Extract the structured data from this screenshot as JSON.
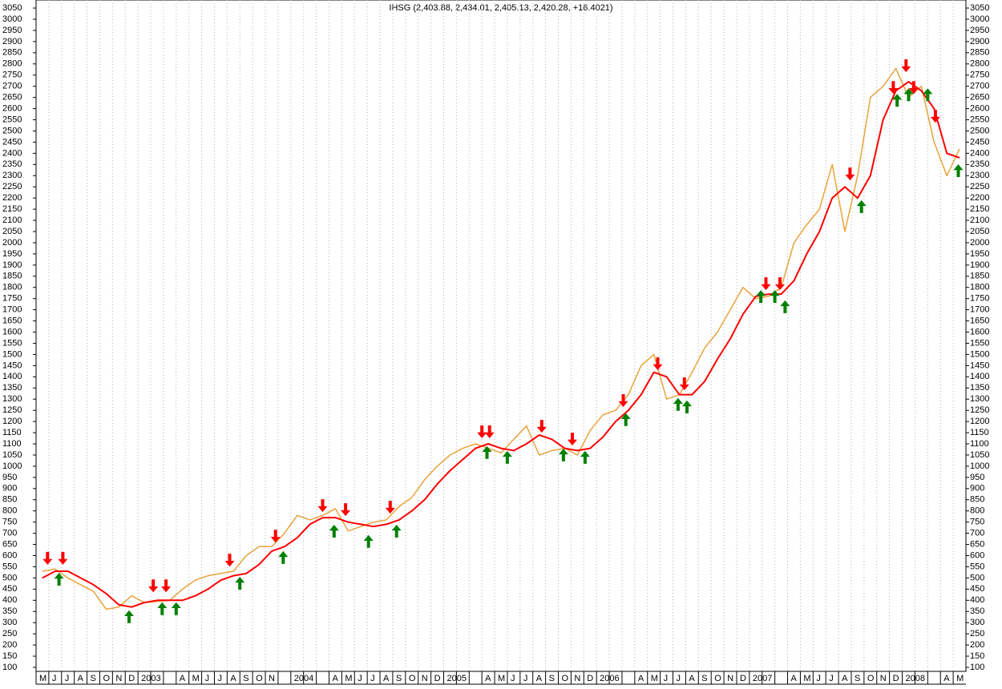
{
  "chart_data": {
    "type": "line",
    "title": "IHSG (2,403.88, 2,434.01, 2,405.13, 2,420.28, +16.4021)",
    "categories": [
      "M",
      "J",
      "J",
      "A",
      "S",
      "O",
      "N",
      "D",
      "2003",
      null,
      null,
      "A",
      "M",
      "J",
      "J",
      "A",
      "S",
      "O",
      "N",
      null,
      "2004",
      null,
      null,
      "A",
      "M",
      "J",
      "J",
      "A",
      "S",
      "O",
      "N",
      "D",
      "2005",
      null,
      null,
      "A",
      "M",
      "J",
      "J",
      "A",
      "S",
      "O",
      "N",
      "D",
      "2006",
      null,
      null,
      "A",
      "M",
      "J",
      "J",
      "A",
      "S",
      "O",
      "N",
      "D",
      "2007",
      null,
      null,
      "A",
      "M",
      "J",
      "J",
      "A",
      "S",
      "O",
      "N",
      "D",
      "2008",
      null,
      null,
      "A",
      "M"
    ],
    "price": {
      "color": "#e8a33c",
      "values": [
        530,
        540,
        500,
        470,
        440,
        360,
        370,
        420,
        390,
        395,
        400,
        450,
        490,
        510,
        520,
        530,
        600,
        640,
        640,
        700,
        780,
        760,
        780,
        810,
        710,
        730,
        750,
        760,
        820,
        860,
        940,
        1000,
        1050,
        1080,
        1100,
        1080,
        1060,
        1120,
        1180,
        1050,
        1070,
        1080,
        1050,
        1160,
        1230,
        1250,
        1320,
        1450,
        1500,
        1300,
        1320,
        1420,
        1530,
        1600,
        1700,
        1800,
        1750,
        1760,
        1800,
        2000,
        2080,
        2150,
        2350,
        2050,
        2300,
        2650,
        2700,
        2780,
        2650,
        2700,
        2450,
        2300,
        2420
      ]
    },
    "moving_average": {
      "color": "#ff0000",
      "values": [
        500,
        530,
        530,
        500,
        470,
        430,
        380,
        370,
        390,
        400,
        400,
        400,
        420,
        450,
        490,
        510,
        520,
        560,
        620,
        640,
        680,
        740,
        770,
        770,
        750,
        740,
        730,
        740,
        760,
        800,
        850,
        920,
        980,
        1030,
        1080,
        1100,
        1080,
        1070,
        1100,
        1140,
        1120,
        1080,
        1070,
        1080,
        1130,
        1200,
        1250,
        1320,
        1420,
        1400,
        1320,
        1320,
        1380,
        1480,
        1570,
        1680,
        1760,
        1770,
        1770,
        1830,
        1950,
        2050,
        2200,
        2250,
        2200,
        2300,
        2550,
        2680,
        2720,
        2680,
        2600,
        2400,
        2380
      ]
    },
    "signals": {
      "sell": {
        "color": "#ff0000",
        "x": [
          0.4,
          1.6,
          8.7,
          9.7,
          14.7,
          18.3,
          22,
          23.8,
          27.3,
          34.5,
          35.1,
          39.2,
          41.6,
          45.6,
          48.3,
          50.4,
          56.8,
          57.9,
          63.4,
          66.8,
          67.8,
          68.4,
          70.1
        ],
        "values": [
          559,
          559,
          436,
          436,
          551,
          658,
          795,
          777,
          788,
          1125,
          1125,
          1150,
          1093,
          1265,
          1430,
          1340,
          1788,
          1788,
          2279,
          2666,
          2763,
          2666,
          2537
        ]
      },
      "buy": {
        "color": "#008000",
        "x": [
          1.3,
          6.8,
          9.4,
          10.5,
          15.5,
          18.9,
          22.9,
          25.6,
          27.8,
          34.9,
          36.5,
          40.9,
          42.6,
          45.8,
          49.9,
          50.6,
          56.4,
          57.5,
          58.3,
          64.3,
          67.1,
          68,
          69.5,
          71.9
        ],
        "values": [
          523,
          355,
          391,
          391,
          505,
          620,
          738,
          692,
          738,
          1090,
          1068,
          1079,
          1068,
          1237,
          1305,
          1294,
          1788,
          1788,
          1742,
          2190,
          2666,
          2691,
          2691,
          2351
        ]
      }
    },
    "ylim": [
      82,
      3086
    ],
    "yticks": [
      100,
      150,
      200,
      250,
      300,
      350,
      400,
      450,
      500,
      550,
      600,
      650,
      700,
      750,
      800,
      850,
      900,
      950,
      1000,
      1050,
      1100,
      1150,
      1200,
      1250,
      1300,
      1350,
      1400,
      1450,
      1500,
      1550,
      1600,
      1650,
      1700,
      1750,
      1800,
      1850,
      1900,
      1950,
      2000,
      2050,
      2100,
      2150,
      2200,
      2250,
      2300,
      2350,
      2400,
      2450,
      2500,
      2550,
      2600,
      2650,
      2700,
      2750,
      2800,
      2850,
      2900,
      2950,
      3000,
      3050
    ],
    "grid": true
  }
}
